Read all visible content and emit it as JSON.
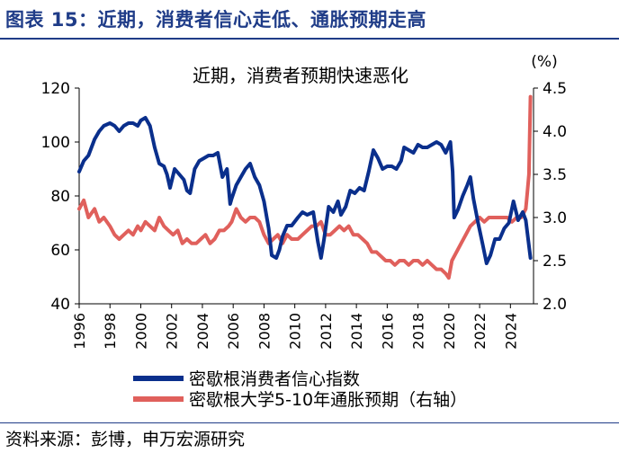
{
  "header": {
    "title": "图表 15：近期，消费者信心走低、通胀预期走高"
  },
  "footer": {
    "source": "资料来源：彭博，申万宏源研究"
  },
  "chart_data": {
    "type": "line",
    "title": "近期，消费者预期快速恶化",
    "right_axis_unit": "(%)",
    "x_ticks": [
      "1996",
      "1998",
      "2000",
      "2002",
      "2004",
      "2006",
      "2008",
      "2010",
      "2012",
      "2014",
      "2016",
      "2018",
      "2020",
      "2022",
      "2024"
    ],
    "xlim": [
      1996,
      2025.5
    ],
    "left_axis": {
      "ticks": [
        "40",
        "60",
        "80",
        "100",
        "120"
      ],
      "ylim": [
        40,
        120
      ]
    },
    "right_axis": {
      "ticks": [
        "2.0",
        "2.5",
        "3.0",
        "3.5",
        "4.0",
        "4.5"
      ],
      "ylim": [
        2.0,
        4.5
      ]
    },
    "series": [
      {
        "name": "密歇根消费者信心指数",
        "axis": "left",
        "color": "#0a2f8c",
        "x": [
          1996.0,
          1996.3,
          1996.6,
          1997.0,
          1997.3,
          1997.6,
          1998.0,
          1998.3,
          1998.6,
          1998.9,
          1999.2,
          1999.5,
          1999.8,
          2000.0,
          2000.3,
          2000.6,
          2000.9,
          2001.2,
          2001.5,
          2001.7,
          2001.9,
          2002.2,
          2002.5,
          2002.8,
          2003.0,
          2003.2,
          2003.5,
          2003.8,
          2004.1,
          2004.4,
          2004.7,
          2005.0,
          2005.3,
          2005.6,
          2005.8,
          2005.9,
          2006.2,
          2006.5,
          2006.8,
          2007.1,
          2007.4,
          2007.7,
          2008.0,
          2008.3,
          2008.5,
          2008.8,
          2009.0,
          2009.2,
          2009.5,
          2009.8,
          2010.2,
          2010.5,
          2010.8,
          2011.2,
          2011.5,
          2011.7,
          2011.9,
          2012.2,
          2012.5,
          2012.8,
          2013.0,
          2013.3,
          2013.6,
          2013.9,
          2014.2,
          2014.5,
          2014.8,
          2015.1,
          2015.4,
          2015.7,
          2016.0,
          2016.3,
          2016.6,
          2016.9,
          2017.1,
          2017.4,
          2017.7,
          2018.0,
          2018.3,
          2018.6,
          2018.9,
          2019.2,
          2019.5,
          2019.8,
          2020.1,
          2020.25,
          2020.35,
          2020.6,
          2020.9,
          2021.2,
          2021.4,
          2021.6,
          2021.9,
          2022.2,
          2022.45,
          2022.7,
          2023.0,
          2023.3,
          2023.6,
          2023.9,
          2024.2,
          2024.5,
          2024.8,
          2025.0,
          2025.15,
          2025.3
        ],
        "y": [
          89,
          93,
          95,
          101,
          104,
          106,
          107,
          106,
          104,
          106,
          107,
          107,
          106,
          108,
          109,
          106,
          98,
          92,
          91,
          88,
          83,
          90,
          88,
          86,
          82,
          81,
          90,
          93,
          94,
          95,
          95,
          96,
          87,
          90,
          77,
          79,
          84,
          87,
          90,
          92,
          87,
          84,
          78,
          68,
          58,
          57,
          60,
          65,
          69,
          69,
          72,
          74,
          73,
          74,
          63,
          57,
          64,
          76,
          74,
          78,
          73,
          76,
          82,
          81,
          83,
          82,
          89,
          97,
          94,
          90,
          91,
          91,
          90,
          93,
          98,
          97,
          96,
          99,
          98,
          98,
          99,
          100,
          99,
          96,
          100,
          89,
          72,
          75,
          80,
          84,
          87,
          79,
          70,
          62,
          55,
          58,
          64,
          64,
          68,
          70,
          78,
          71,
          74,
          71,
          64,
          57
        ]
      },
      {
        "name": "密歇根大学5-10年通胀预期（右轴）",
        "axis": "right",
        "color": "#e0605c",
        "x": [
          1996.0,
          1996.3,
          1996.6,
          1997.0,
          1997.3,
          1997.6,
          1998.0,
          1998.3,
          1998.6,
          1998.9,
          1999.2,
          1999.5,
          1999.8,
          2000.0,
          2000.3,
          2000.6,
          2000.9,
          2001.2,
          2001.5,
          2001.8,
          2002.1,
          2002.4,
          2002.7,
          2003.0,
          2003.3,
          2003.6,
          2003.9,
          2004.2,
          2004.5,
          2004.8,
          2005.1,
          2005.4,
          2005.7,
          2005.9,
          2006.2,
          2006.5,
          2006.8,
          2007.1,
          2007.4,
          2007.7,
          2008.0,
          2008.3,
          2008.6,
          2008.9,
          2009.2,
          2009.5,
          2009.8,
          2010.2,
          2010.5,
          2010.8,
          2011.1,
          2011.4,
          2011.7,
          2012.0,
          2012.3,
          2012.6,
          2012.9,
          2013.2,
          2013.5,
          2013.8,
          2014.1,
          2014.4,
          2014.7,
          2015.0,
          2015.3,
          2015.6,
          2015.9,
          2016.2,
          2016.5,
          2016.8,
          2017.1,
          2017.4,
          2017.7,
          2018.0,
          2018.3,
          2018.6,
          2018.9,
          2019.2,
          2019.5,
          2019.8,
          2020.0,
          2020.2,
          2020.5,
          2020.8,
          2021.1,
          2021.4,
          2021.7,
          2022.0,
          2022.3,
          2022.6,
          2022.9,
          2023.2,
          2023.5,
          2023.8,
          2024.1,
          2024.4,
          2024.7,
          2025.0,
          2025.1,
          2025.2,
          2025.3
        ],
        "y": [
          3.1,
          3.2,
          3.0,
          3.1,
          2.95,
          3.0,
          2.9,
          2.8,
          2.75,
          2.8,
          2.85,
          2.8,
          2.9,
          2.85,
          2.95,
          2.9,
          2.85,
          3.0,
          2.9,
          2.85,
          2.8,
          2.85,
          2.7,
          2.75,
          2.7,
          2.7,
          2.75,
          2.8,
          2.7,
          2.75,
          2.85,
          2.85,
          2.9,
          2.95,
          3.1,
          3.0,
          2.95,
          3.0,
          3.0,
          2.95,
          2.8,
          2.7,
          2.75,
          2.8,
          2.7,
          2.8,
          2.75,
          2.75,
          2.8,
          2.85,
          2.9,
          2.9,
          2.95,
          2.8,
          2.8,
          2.85,
          2.9,
          2.85,
          2.9,
          2.8,
          2.8,
          2.75,
          2.7,
          2.6,
          2.6,
          2.55,
          2.5,
          2.5,
          2.45,
          2.5,
          2.5,
          2.45,
          2.5,
          2.5,
          2.45,
          2.5,
          2.45,
          2.4,
          2.4,
          2.35,
          2.3,
          2.5,
          2.6,
          2.7,
          2.8,
          2.9,
          2.95,
          3.0,
          2.95,
          3.0,
          3.0,
          3.0,
          3.0,
          3.0,
          2.95,
          3.0,
          3.0,
          3.1,
          3.3,
          3.5,
          4.4
        ]
      }
    ],
    "legend": {
      "position": "bottom-center"
    }
  }
}
